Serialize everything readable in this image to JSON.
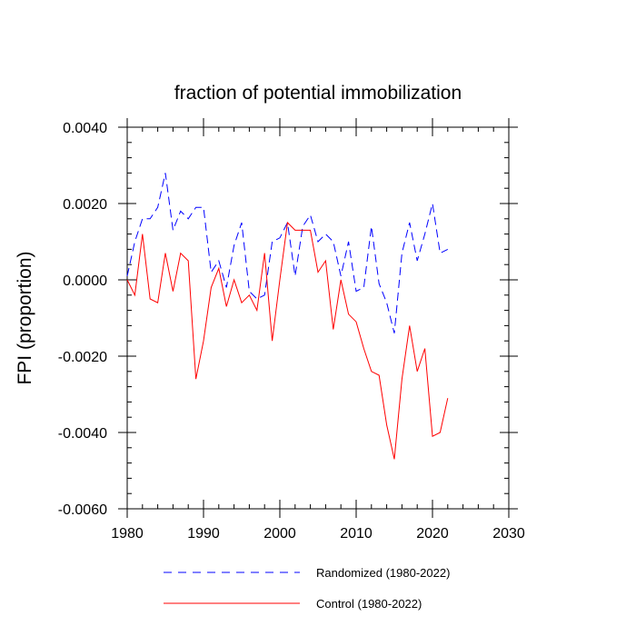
{
  "chart_data": {
    "type": "line",
    "title": "fraction of potential immobilization",
    "xlabel": "",
    "ylabel": "FPI  (proportion)",
    "xlim": [
      1980,
      2030
    ],
    "ylim": [
      -0.006,
      0.004
    ],
    "x_ticks": [
      1980,
      1990,
      2000,
      2010,
      2020,
      2030
    ],
    "x_tick_labels": [
      "1980",
      "1990",
      "2000",
      "2010",
      "2020",
      "2030"
    ],
    "y_ticks": [
      0.004,
      0.002,
      0.0,
      -0.002,
      -0.004,
      -0.006
    ],
    "y_tick_labels": [
      "0.0040",
      "0.0020",
      "0.0000",
      "-0.0020",
      "-0.0040",
      "-0.0060"
    ],
    "grid": false,
    "legend_position": "bottom",
    "x": [
      1980,
      1981,
      1982,
      1983,
      1984,
      1985,
      1986,
      1987,
      1988,
      1989,
      1990,
      1991,
      1992,
      1993,
      1994,
      1995,
      1996,
      1997,
      1998,
      1999,
      2000,
      2001,
      2002,
      2003,
      2004,
      2005,
      2006,
      2007,
      2008,
      2009,
      2010,
      2011,
      2012,
      2013,
      2014,
      2015,
      2016,
      2017,
      2018,
      2019,
      2020,
      2021,
      2022
    ],
    "series": [
      {
        "name": "Randomized (1980-2022)",
        "color": "#0000ff",
        "style": "dashed",
        "values": [
          0.0001,
          0.001,
          0.0016,
          0.0016,
          0.0019,
          0.0028,
          0.0013,
          0.0018,
          0.0016,
          0.0019,
          0.0019,
          0.0002,
          0.0005,
          -0.0002,
          0.0009,
          0.0015,
          -0.0003,
          -0.0005,
          -0.0004,
          0.001,
          0.0011,
          0.0015,
          0.0001,
          0.0014,
          0.0017,
          0.001,
          0.0012,
          0.001,
          0.0001,
          0.001,
          -0.0003,
          -0.0002,
          0.0014,
          -0.0001,
          -0.0006,
          -0.0014,
          0.0007,
          0.0015,
          0.0005,
          0.0012,
          0.002,
          0.0007,
          0.0008
        ]
      },
      {
        "name": "Control (1980-2022)",
        "color": "#ff0000",
        "style": "solid",
        "values": [
          0.0,
          -0.0004,
          0.0012,
          -0.0005,
          -0.0006,
          0.0007,
          -0.0003,
          0.0007,
          0.0005,
          -0.0026,
          -0.0016,
          -0.0002,
          0.0003,
          -0.0007,
          0.0,
          -0.0006,
          -0.0004,
          -0.0008,
          0.0007,
          -0.0016,
          0.0,
          0.0015,
          0.0013,
          0.0013,
          0.0013,
          0.0002,
          0.0005,
          -0.0013,
          0.0,
          -0.0009,
          -0.0011,
          -0.0018,
          -0.0024,
          -0.0025,
          -0.0038,
          -0.0047,
          -0.0026,
          -0.0012,
          -0.0024,
          -0.0018,
          -0.0041,
          -0.004,
          -0.0031
        ]
      }
    ]
  }
}
